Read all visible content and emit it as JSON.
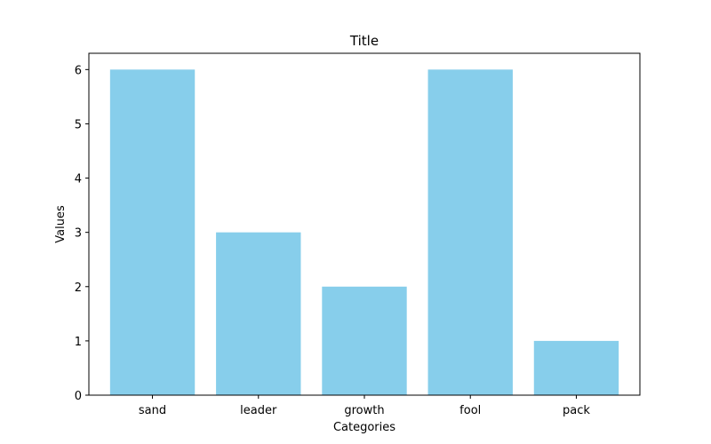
{
  "chart_data": {
    "type": "bar",
    "title": "Title",
    "xlabel": "Categories",
    "ylabel": "Values",
    "categories": [
      "sand",
      "leader",
      "growth",
      "fool",
      "pack"
    ],
    "values": [
      6,
      3,
      2,
      6,
      1
    ],
    "ylim": [
      0,
      6.3
    ],
    "yticks": [
      0,
      1,
      2,
      3,
      4,
      5,
      6
    ],
    "grid": false,
    "legend": "none",
    "bar_color": "#87CEEB"
  }
}
